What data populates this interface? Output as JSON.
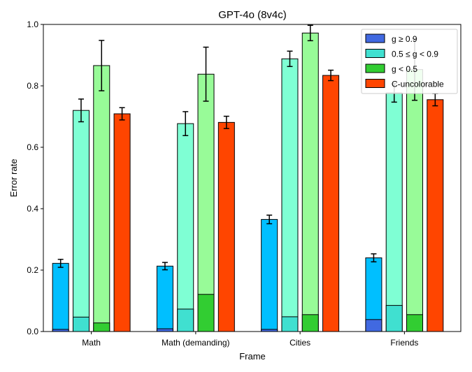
{
  "chart_data": {
    "type": "bar",
    "title": "GPT-4o (8v4c)",
    "xlabel": "Frame",
    "ylabel": "Error rate",
    "ylim": [
      0,
      1.0
    ],
    "yticks": [
      "0.0",
      "0.2",
      "0.4",
      "0.6",
      "0.8",
      "1.0"
    ],
    "categories": [
      "Math",
      "Math (demanding)",
      "Cities",
      "Friends"
    ],
    "legend_position": "top-right",
    "series": [
      {
        "name": "g ≥ 0.9",
        "color_dark": "#4169e1",
        "color_light": "#00bfff",
        "inner": [
          0.007,
          0.009,
          0.007,
          0.039
        ],
        "values": [
          0.222,
          0.213,
          0.365,
          0.24
        ],
        "errors": [
          0.013,
          0.012,
          0.014,
          0.013
        ]
      },
      {
        "name": "0.5 ≤ g < 0.9",
        "color_dark": "#40e0d0",
        "color_light": "#7fffd4",
        "inner": [
          0.047,
          0.073,
          0.048,
          0.085
        ],
        "values": [
          0.72,
          0.677,
          0.888,
          0.777
        ],
        "errors": [
          0.037,
          0.039,
          0.025,
          0.03
        ]
      },
      {
        "name": "g < 0.5",
        "color_dark": "#32cd32",
        "color_light": "#98fb98",
        "inner": [
          0.028,
          0.121,
          0.055,
          0.055
        ],
        "values": [
          0.866,
          0.838,
          0.972,
          0.853
        ],
        "errors": [
          0.082,
          0.088,
          0.025,
          0.1
        ]
      },
      {
        "name": "C-uncolorable",
        "color_dark": "#ff4500",
        "color_light": "#ff4500",
        "inner": [
          0,
          0,
          0,
          0
        ],
        "values": [
          0.709,
          0.681,
          0.834,
          0.755
        ],
        "errors": [
          0.02,
          0.02,
          0.017,
          0.02
        ]
      }
    ]
  }
}
